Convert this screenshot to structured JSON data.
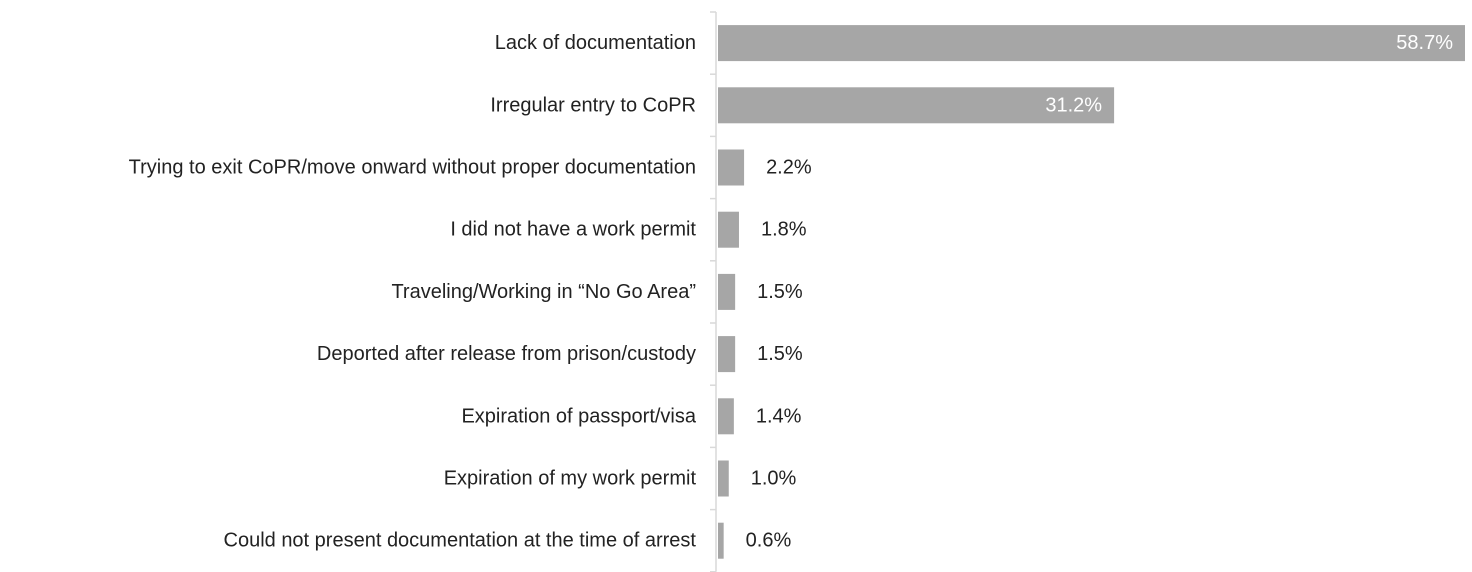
{
  "chart_data": {
    "type": "bar",
    "orientation": "horizontal",
    "categories": [
      "Lack of documentation",
      "Irregular entry to CoPR",
      "Trying to exit CoPR/move onward without proper documentation",
      "I did not have a work permit",
      "Traveling/Working in “No Go Area”",
      "Deported after release from prison/custody",
      "Expiration of passport/visa",
      "Expiration of my work permit",
      "Could not present documentation at the time of arrest"
    ],
    "values": [
      58.7,
      31.2,
      2.2,
      1.8,
      1.5,
      1.5,
      1.4,
      1.0,
      0.6
    ],
    "value_labels": [
      "58.7%",
      "31.2%",
      "2.2%",
      "1.8%",
      "1.5%",
      "1.5%",
      "1.4%",
      "1.0%",
      "0.6%"
    ],
    "xlim": [
      0,
      58.7
    ],
    "grid": false,
    "legend": "none",
    "bar_color": "#a6a6a6",
    "axis_color": "#d9d9d9"
  }
}
